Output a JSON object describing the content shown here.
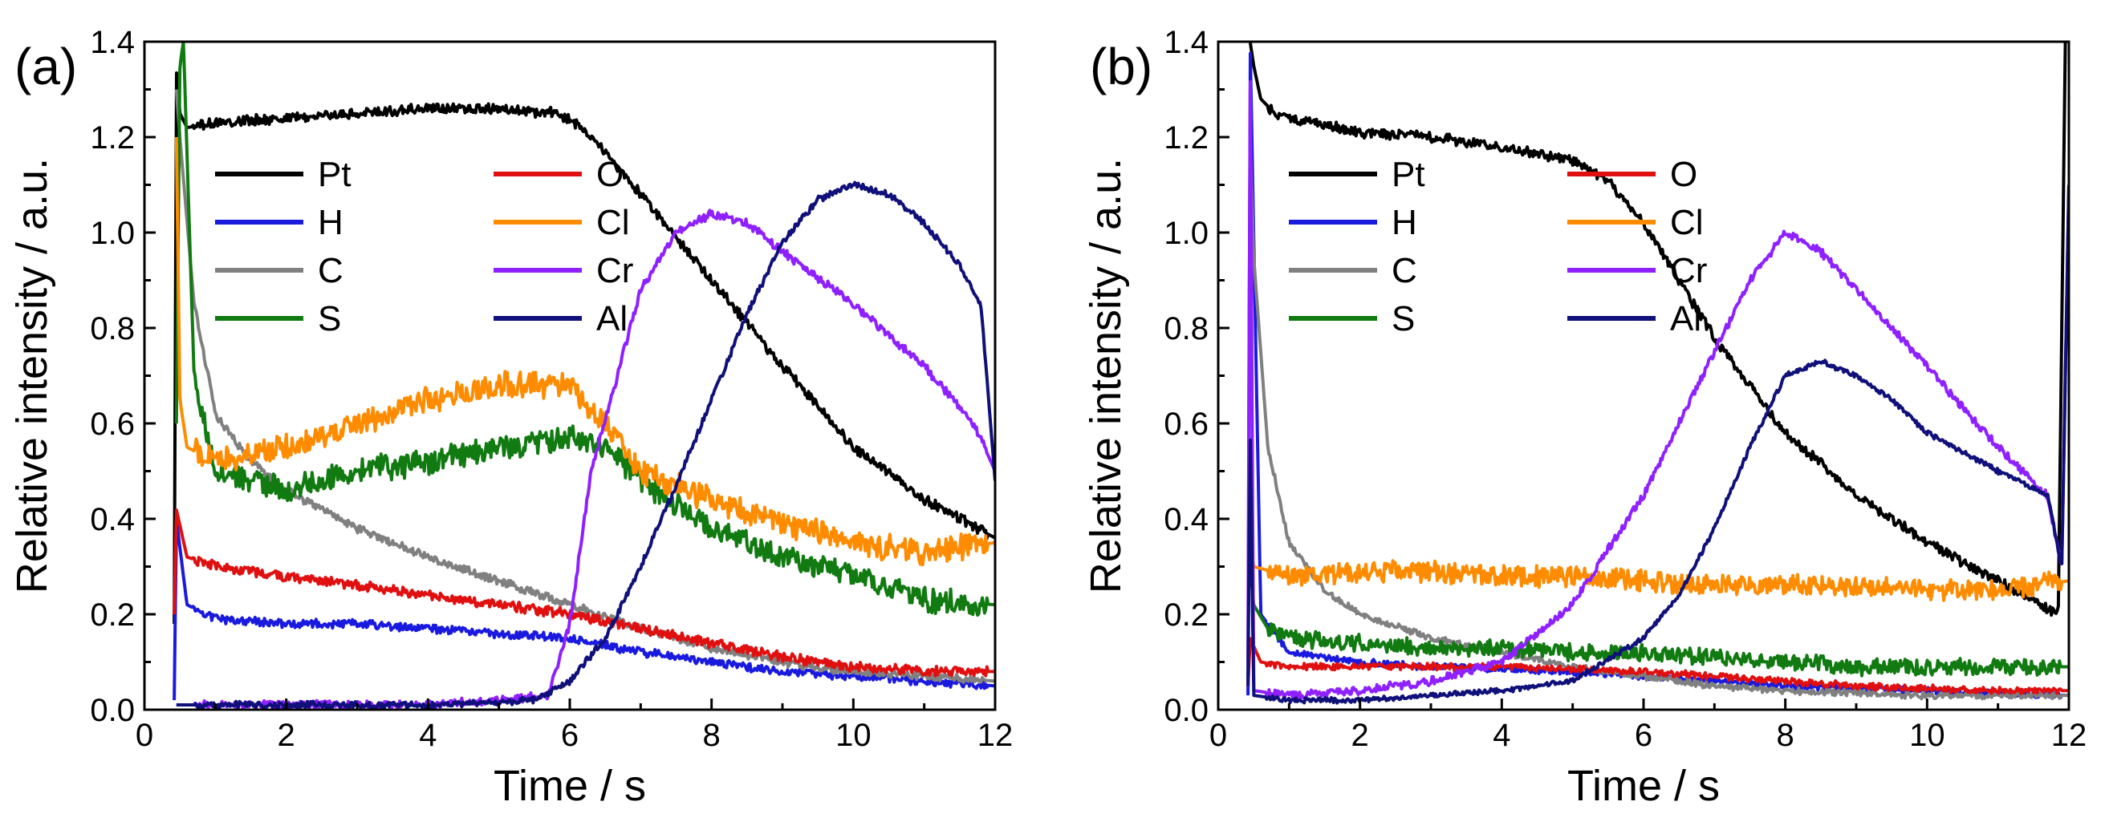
{
  "chart_data": [
    {
      "type": "line",
      "panel_label": "(a)",
      "xlabel": "Time / s",
      "ylabel": "Relative intensity / a.u.",
      "xlim": [
        0,
        12
      ],
      "ylim": [
        0,
        1.4
      ],
      "xticks": [
        "0",
        "2",
        "4",
        "6",
        "8",
        "10",
        "12"
      ],
      "yticks": [
        "0.0",
        "0.2",
        "0.4",
        "0.6",
        "0.8",
        "1.0",
        "1.2",
        "1.4"
      ],
      "legend": {
        "placement": "upper-left",
        "columns": 2
      },
      "series": [
        {
          "name": "Pt",
          "color": "#000000",
          "noise": 0.012,
          "x": [
            0.42,
            0.45,
            0.5,
            0.6,
            1,
            2,
            3,
            4,
            5,
            5.8,
            6.2,
            7,
            8,
            9,
            10,
            11,
            12
          ],
          "y": [
            0.18,
            1.34,
            1.25,
            1.22,
            1.23,
            1.24,
            1.25,
            1.26,
            1.26,
            1.25,
            1.22,
            1.08,
            0.9,
            0.72,
            0.55,
            0.44,
            0.36
          ]
        },
        {
          "name": "H",
          "color": "#1a1adf",
          "noise": 0.01,
          "x": [
            0.42,
            0.45,
            0.6,
            1,
            2,
            3,
            4,
            5,
            6,
            7,
            8,
            9,
            10,
            11,
            12
          ],
          "y": [
            0.02,
            0.4,
            0.22,
            0.19,
            0.18,
            0.18,
            0.17,
            0.16,
            0.15,
            0.12,
            0.1,
            0.08,
            0.07,
            0.06,
            0.05
          ]
        },
        {
          "name": "C",
          "color": "#808080",
          "noise": 0.01,
          "x": [
            0.45,
            0.5,
            0.7,
            1,
            1.5,
            2,
            3,
            4,
            5,
            6,
            7,
            8,
            9,
            10,
            11,
            12
          ],
          "y": [
            1.3,
            1.2,
            0.85,
            0.62,
            0.52,
            0.46,
            0.38,
            0.32,
            0.27,
            0.22,
            0.17,
            0.13,
            0.1,
            0.08,
            0.07,
            0.06
          ]
        },
        {
          "name": "S",
          "color": "#117a11",
          "noise": 0.03,
          "x": [
            0.45,
            0.5,
            0.55,
            0.7,
            1,
            2,
            3,
            4,
            5,
            6,
            6.5,
            7,
            8,
            9,
            10,
            11,
            12
          ],
          "y": [
            0.6,
            1.35,
            1.4,
            0.7,
            0.5,
            0.46,
            0.5,
            0.52,
            0.55,
            0.57,
            0.55,
            0.48,
            0.38,
            0.32,
            0.28,
            0.23,
            0.22
          ]
        },
        {
          "name": "O",
          "color": "#e01010",
          "noise": 0.012,
          "x": [
            0.42,
            0.45,
            0.6,
            1,
            2,
            3,
            4,
            5,
            6,
            7,
            8,
            9,
            10,
            11,
            12
          ],
          "y": [
            0.2,
            0.42,
            0.32,
            0.3,
            0.28,
            0.26,
            0.24,
            0.22,
            0.2,
            0.17,
            0.14,
            0.11,
            0.09,
            0.08,
            0.08
          ]
        },
        {
          "name": "Cl",
          "color": "#ff8c00",
          "noise": 0.03,
          "x": [
            0.45,
            0.5,
            0.6,
            1,
            2,
            3,
            4,
            5,
            6,
            6.5,
            7,
            8,
            9,
            10,
            11,
            12
          ],
          "y": [
            1.2,
            0.65,
            0.55,
            0.52,
            0.55,
            0.6,
            0.65,
            0.68,
            0.68,
            0.6,
            0.5,
            0.44,
            0.39,
            0.35,
            0.33,
            0.35
          ]
        },
        {
          "name": "Cr",
          "color": "#8f20ff",
          "noise": 0.01,
          "x": [
            0.45,
            1,
            2,
            3,
            4,
            5,
            5.7,
            6,
            6.3,
            7,
            7.5,
            8,
            8.5,
            9,
            10,
            11,
            11.7,
            12
          ],
          "y": [
            0.01,
            0.01,
            0.01,
            0.01,
            0.01,
            0.02,
            0.03,
            0.18,
            0.5,
            0.88,
            1.0,
            1.04,
            1.02,
            0.96,
            0.85,
            0.72,
            0.6,
            0.5
          ]
        },
        {
          "name": "Al",
          "color": "#10107a",
          "noise": 0.008,
          "x": [
            0.45,
            2,
            4,
            5.5,
            6,
            6.5,
            7,
            7.5,
            8,
            8.5,
            9,
            9.5,
            10,
            10.5,
            11,
            11.5,
            11.8,
            12
          ],
          "y": [
            0.01,
            0.01,
            0.01,
            0.02,
            0.06,
            0.15,
            0.3,
            0.47,
            0.65,
            0.83,
            0.98,
            1.07,
            1.1,
            1.08,
            1.02,
            0.93,
            0.85,
            0.48
          ]
        }
      ]
    },
    {
      "type": "line",
      "panel_label": "(b)",
      "xlabel": "Time / s",
      "ylabel": "Relative intensity / a.u.",
      "xlim": [
        0,
        12
      ],
      "ylim": [
        0,
        1.4
      ],
      "xticks": [
        "0",
        "2",
        "4",
        "6",
        "8",
        "10",
        "12"
      ],
      "yticks": [
        "0.0",
        "0.2",
        "0.4",
        "0.6",
        "0.8",
        "1.0",
        "1.2",
        "1.4"
      ],
      "legend": {
        "placement": "upper-left",
        "columns": 2
      },
      "series": [
        {
          "name": "Pt",
          "color": "#000000",
          "noise": 0.012,
          "x": [
            0.45,
            0.5,
            0.6,
            0.8,
            1,
            2,
            3,
            4,
            5,
            5.5,
            6,
            6.5,
            7,
            8,
            9,
            10,
            11,
            11.85,
            11.95
          ],
          "y": [
            1.4,
            1.35,
            1.28,
            1.25,
            1.24,
            1.21,
            1.2,
            1.18,
            1.15,
            1.11,
            1.02,
            0.9,
            0.78,
            0.58,
            0.45,
            0.35,
            0.27,
            0.2,
            1.4
          ]
        },
        {
          "name": "H",
          "color": "#1a1adf",
          "noise": 0.008,
          "x": [
            0.42,
            0.45,
            0.6,
            1,
            2,
            3,
            4,
            5,
            6,
            7,
            8,
            9,
            10,
            11,
            12
          ],
          "y": [
            0.03,
            1.4,
            0.2,
            0.12,
            0.1,
            0.09,
            0.085,
            0.08,
            0.07,
            0.06,
            0.05,
            0.045,
            0.04,
            0.035,
            0.03
          ]
        },
        {
          "name": "C",
          "color": "#808080",
          "noise": 0.008,
          "x": [
            0.45,
            0.5,
            0.7,
            1,
            1.5,
            2,
            3,
            4,
            5,
            6,
            7,
            8,
            9,
            10,
            11,
            12
          ],
          "y": [
            1.2,
            0.95,
            0.55,
            0.35,
            0.25,
            0.2,
            0.15,
            0.12,
            0.09,
            0.07,
            0.05,
            0.04,
            0.035,
            0.03,
            0.03,
            0.03
          ]
        },
        {
          "name": "S",
          "color": "#117a11",
          "noise": 0.02,
          "x": [
            0.45,
            0.5,
            0.7,
            1,
            2,
            3,
            4,
            5,
            6,
            7,
            8,
            9,
            10,
            11,
            12
          ],
          "y": [
            0.3,
            0.22,
            0.17,
            0.15,
            0.14,
            0.13,
            0.13,
            0.12,
            0.12,
            0.11,
            0.1,
            0.09,
            0.09,
            0.09,
            0.09
          ]
        },
        {
          "name": "O",
          "color": "#e01010",
          "noise": 0.008,
          "x": [
            0.42,
            0.45,
            0.6,
            1,
            2,
            3,
            4,
            5,
            6,
            7,
            8,
            9,
            10,
            11,
            12
          ],
          "y": [
            0.05,
            0.15,
            0.1,
            0.09,
            0.09,
            0.09,
            0.09,
            0.085,
            0.08,
            0.07,
            0.06,
            0.05,
            0.045,
            0.04,
            0.04
          ]
        },
        {
          "name": "Cl",
          "color": "#ff8c00",
          "noise": 0.025,
          "x": [
            0.45,
            0.5,
            1,
            2,
            3,
            4,
            5,
            6,
            7,
            8,
            9,
            10,
            11,
            12
          ],
          "y": [
            0.35,
            0.3,
            0.28,
            0.29,
            0.29,
            0.28,
            0.28,
            0.27,
            0.26,
            0.26,
            0.26,
            0.25,
            0.25,
            0.27
          ]
        },
        {
          "name": "Cr",
          "color": "#8f20ff",
          "noise": 0.01,
          "x": [
            0.42,
            0.45,
            0.5,
            1,
            2,
            3,
            4,
            5,
            6,
            7,
            7.5,
            8,
            8.5,
            9,
            10,
            11,
            11.7,
            11.9,
            12
          ],
          "y": [
            0.1,
            1.4,
            0.04,
            0.03,
            0.04,
            0.06,
            0.1,
            0.22,
            0.45,
            0.75,
            0.9,
            1.0,
            0.96,
            0.88,
            0.72,
            0.55,
            0.45,
            0.3,
            1.1
          ]
        },
        {
          "name": "Al",
          "color": "#10107a",
          "noise": 0.006,
          "x": [
            0.42,
            0.45,
            0.5,
            1,
            2,
            3,
            4,
            5,
            6,
            6.5,
            7,
            7.5,
            8,
            8.5,
            9,
            9.5,
            10,
            11,
            11.7,
            11.9,
            12
          ],
          "y": [
            0.05,
            0.6,
            0.03,
            0.02,
            0.02,
            0.03,
            0.04,
            0.06,
            0.15,
            0.24,
            0.38,
            0.55,
            0.7,
            0.73,
            0.7,
            0.65,
            0.58,
            0.5,
            0.45,
            0.3,
            1.1
          ]
        }
      ]
    }
  ]
}
